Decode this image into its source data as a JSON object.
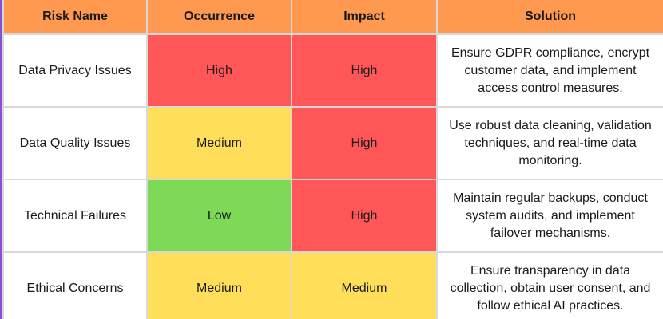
{
  "headers": {
    "risk_name": "Risk Name",
    "occurrence": "Occurrence",
    "impact": "Impact",
    "solution": "Solution"
  },
  "level_colors": {
    "High": "#ff5757",
    "Medium": "#ffde59",
    "Low": "#7ed957"
  },
  "header_color": "#ff9950",
  "rows": [
    {
      "risk_name": "Data Privacy Issues",
      "occurrence": "High",
      "impact": "High",
      "solution": "Ensure GDPR compliance, encrypt customer data, and implement access control measures."
    },
    {
      "risk_name": "Data Quality Issues",
      "occurrence": "Medium",
      "impact": "High",
      "solution": "Use robust data cleaning, validation techniques, and real-time data monitoring."
    },
    {
      "risk_name": "Technical Failures",
      "occurrence": "Low",
      "impact": "High",
      "solution": "Maintain regular backups, conduct system audits, and implement failover mechanisms."
    },
    {
      "risk_name": "Ethical Concerns",
      "occurrence": "Medium",
      "impact": "Medium",
      "solution": "Ensure transparency in data collection, obtain user consent, and follow ethical AI practices."
    }
  ]
}
